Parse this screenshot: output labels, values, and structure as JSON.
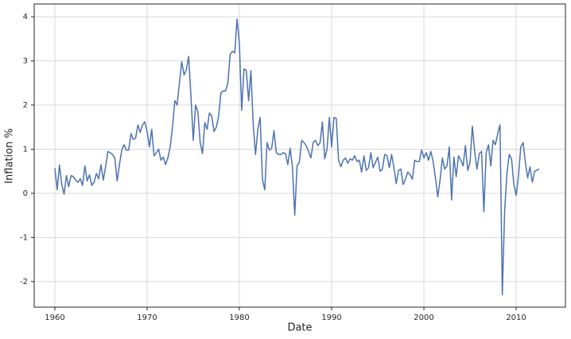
{
  "chart_data": {
    "type": "line",
    "xlabel": "Date",
    "ylabel": "Inflation %",
    "color": "#4c72b0",
    "grid": true,
    "xlim": [
      1957.76,
      2015.34
    ],
    "ylim": [
      -2.58,
      4.29
    ],
    "xticks": [
      1960,
      1970,
      1980,
      1990,
      2000,
      2010
    ],
    "yticks": [
      -2,
      -1,
      0,
      1,
      2,
      3,
      4
    ],
    "x": [
      1960.0,
      1960.25,
      1960.5,
      1960.75,
      1961.0,
      1961.25,
      1961.5,
      1961.75,
      1962.0,
      1962.25,
      1962.5,
      1962.75,
      1963.0,
      1963.25,
      1963.5,
      1963.75,
      1964.0,
      1964.25,
      1964.5,
      1964.75,
      1965.0,
      1965.25,
      1965.5,
      1965.75,
      1966.0,
      1966.25,
      1966.5,
      1966.75,
      1967.0,
      1967.25,
      1967.5,
      1967.75,
      1968.0,
      1968.25,
      1968.5,
      1968.75,
      1969.0,
      1969.25,
      1969.5,
      1969.75,
      1970.0,
      1970.25,
      1970.5,
      1970.75,
      1971.0,
      1971.25,
      1971.5,
      1971.75,
      1972.0,
      1972.25,
      1972.5,
      1972.75,
      1973.0,
      1973.25,
      1973.5,
      1973.75,
      1974.0,
      1974.25,
      1974.5,
      1974.75,
      1975.0,
      1975.25,
      1975.5,
      1975.75,
      1976.0,
      1976.25,
      1976.5,
      1976.75,
      1977.0,
      1977.25,
      1977.5,
      1977.75,
      1978.0,
      1978.25,
      1978.5,
      1978.75,
      1979.0,
      1979.25,
      1979.5,
      1979.75,
      1980.0,
      1980.25,
      1980.5,
      1980.75,
      1981.0,
      1981.25,
      1981.5,
      1981.75,
      1982.0,
      1982.25,
      1982.5,
      1982.75,
      1983.0,
      1983.25,
      1983.5,
      1983.75,
      1984.0,
      1984.25,
      1984.5,
      1984.75,
      1985.0,
      1985.25,
      1985.5,
      1985.75,
      1986.0,
      1986.25,
      1986.5,
      1986.75,
      1987.0,
      1987.25,
      1987.5,
      1987.75,
      1988.0,
      1988.25,
      1988.5,
      1988.75,
      1989.0,
      1989.25,
      1989.5,
      1989.75,
      1990.0,
      1990.25,
      1990.5,
      1990.75,
      1991.0,
      1991.25,
      1991.5,
      1991.75,
      1992.0,
      1992.25,
      1992.5,
      1992.75,
      1993.0,
      1993.25,
      1993.5,
      1993.75,
      1994.0,
      1994.25,
      1994.5,
      1994.75,
      1995.0,
      1995.25,
      1995.5,
      1995.75,
      1996.0,
      1996.25,
      1996.5,
      1996.75,
      1997.0,
      1997.25,
      1997.5,
      1997.75,
      1998.0,
      1998.25,
      1998.5,
      1998.75,
      1999.0,
      1999.25,
      1999.5,
      1999.75,
      2000.0,
      2000.25,
      2000.5,
      2000.75,
      2001.0,
      2001.25,
      2001.5,
      2001.75,
      2002.0,
      2002.25,
      2002.5,
      2002.75,
      2003.0,
      2003.25,
      2003.5,
      2003.75,
      2004.0,
      2004.25,
      2004.5,
      2004.75,
      2005.0,
      2005.25,
      2005.5,
      2005.75,
      2006.0,
      2006.25,
      2006.5,
      2006.75,
      2007.0,
      2007.25,
      2007.5,
      2007.75,
      2008.0,
      2008.25,
      2008.5,
      2008.75,
      2009.0,
      2009.25,
      2009.5,
      2009.75,
      2010.0,
      2010.25,
      2010.5,
      2010.75,
      2011.0,
      2011.25,
      2011.5,
      2011.75,
      2012.0,
      2012.25,
      2012.5
    ],
    "values": [
      0.57,
      0.08,
      0.64,
      0.2,
      -0.02,
      0.4,
      0.15,
      0.4,
      0.38,
      0.3,
      0.25,
      0.33,
      0.18,
      0.62,
      0.28,
      0.42,
      0.18,
      0.25,
      0.45,
      0.33,
      0.65,
      0.3,
      0.6,
      0.95,
      0.92,
      0.88,
      0.8,
      0.28,
      0.65,
      0.98,
      1.1,
      0.98,
      0.98,
      1.35,
      1.22,
      1.25,
      1.55,
      1.38,
      1.55,
      1.62,
      1.4,
      1.05,
      1.45,
      0.85,
      0.92,
      1.0,
      0.75,
      0.82,
      0.65,
      0.8,
      1.05,
      1.5,
      2.1,
      2.0,
      2.5,
      2.98,
      2.68,
      2.8,
      3.1,
      2.2,
      1.2,
      2.0,
      1.85,
      1.15,
      0.9,
      1.6,
      1.45,
      1.82,
      1.75,
      1.4,
      1.5,
      1.75,
      2.28,
      2.32,
      2.32,
      2.5,
      3.15,
      3.22,
      3.18,
      3.95,
      3.4,
      1.88,
      2.82,
      2.78,
      2.1,
      2.78,
      1.55,
      0.88,
      1.45,
      1.72,
      0.32,
      0.08,
      1.15,
      0.98,
      1.02,
      1.42,
      0.92,
      0.88,
      0.88,
      0.92,
      0.9,
      0.65,
      1.02,
      0.6,
      -0.5,
      0.62,
      0.7,
      1.2,
      1.15,
      1.08,
      0.95,
      0.8,
      1.15,
      1.2,
      1.08,
      1.15,
      1.62,
      0.78,
      1.0,
      1.72,
      1.05,
      1.72,
      1.7,
      0.75,
      0.6,
      0.75,
      0.8,
      0.68,
      0.78,
      0.75,
      0.85,
      0.72,
      0.75,
      0.48,
      0.85,
      0.52,
      0.58,
      0.92,
      0.58,
      0.7,
      0.82,
      0.5,
      0.55,
      0.88,
      0.85,
      0.58,
      0.88,
      0.58,
      0.22,
      0.52,
      0.55,
      0.2,
      0.32,
      0.48,
      0.42,
      0.32,
      0.75,
      0.72,
      0.72,
      0.98,
      0.8,
      0.92,
      0.75,
      0.95,
      0.72,
      0.35,
      -0.08,
      0.3,
      0.8,
      0.55,
      0.62,
      1.05,
      -0.15,
      0.82,
      0.38,
      0.85,
      0.75,
      0.62,
      1.08,
      0.52,
      0.7,
      1.52,
      0.95,
      0.55,
      0.9,
      0.95,
      -0.42,
      0.92,
      1.1,
      0.62,
      1.2,
      1.1,
      1.35,
      1.55,
      -2.3,
      -0.4,
      0.45,
      0.88,
      0.78,
      0.2,
      -0.05,
      0.4,
      1.05,
      1.15,
      0.7,
      0.35,
      0.6,
      0.25,
      0.5,
      0.52,
      0.55
    ]
  }
}
